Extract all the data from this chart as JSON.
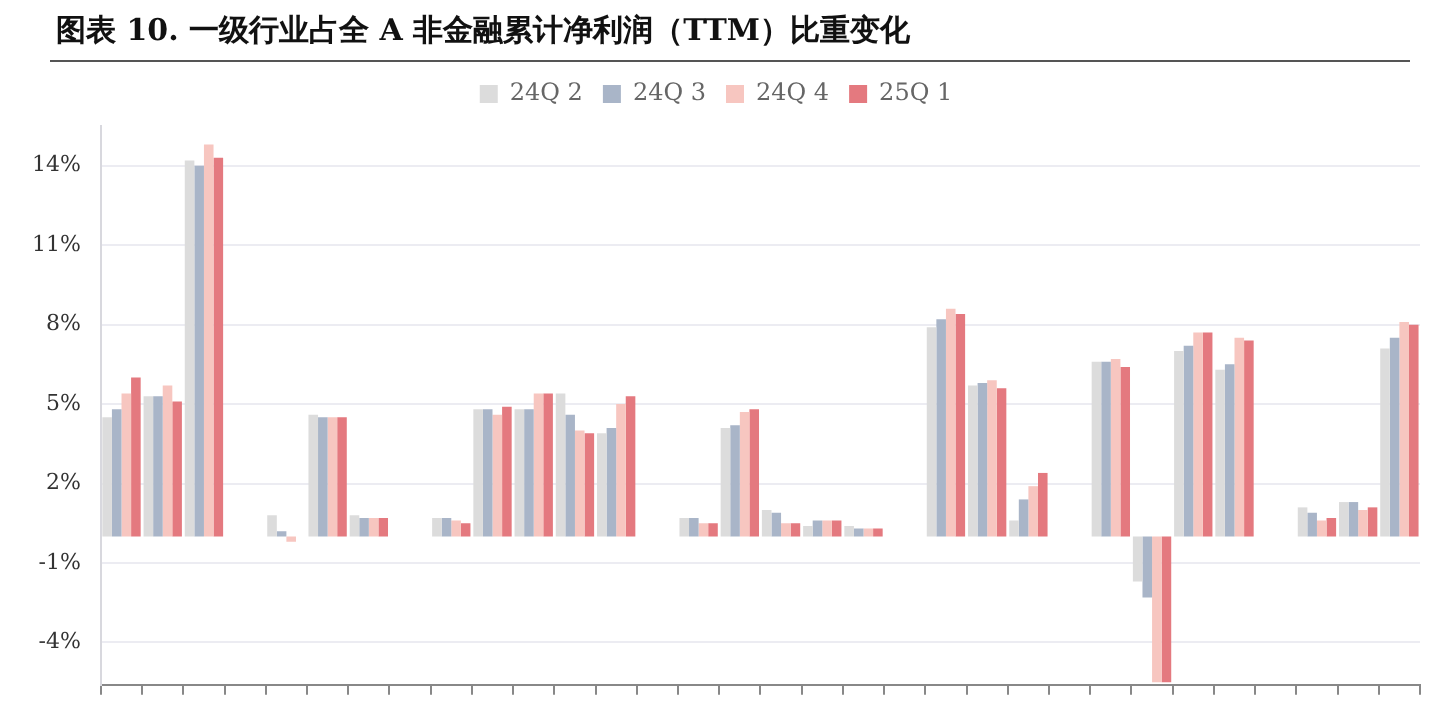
{
  "chart_data": {
    "type": "bar",
    "title": "图表 10. 一级行业占全 A 非金融累计净利润（TTM）比重变化",
    "categories": [
      null,
      null,
      null,
      null,
      null,
      null,
      null,
      null,
      null,
      null,
      null,
      null,
      null,
      null,
      null,
      null,
      null,
      null,
      null,
      null,
      null,
      null,
      null,
      null,
      null,
      null,
      null,
      null,
      null,
      null,
      null,
      null
    ],
    "series": [
      {
        "name": "24Q 2",
        "color": "#dcdcdc",
        "values": [
          4.5,
          5.3,
          14.2,
          null,
          0.8,
          4.6,
          0.8,
          null,
          0.7,
          4.8,
          4.8,
          5.4,
          3.9,
          null,
          0.7,
          4.1,
          1.0,
          0.4,
          0.4,
          null,
          7.9,
          5.7,
          0.6,
          null,
          6.6,
          -1.7,
          7.0,
          6.3,
          null,
          1.1,
          1.3,
          7.1
        ]
      },
      {
        "name": "24Q 3",
        "color": "#a9b5c8",
        "values": [
          4.8,
          5.3,
          14.0,
          null,
          0.2,
          4.5,
          0.7,
          null,
          0.7,
          4.8,
          4.8,
          4.6,
          4.1,
          null,
          0.7,
          4.2,
          0.9,
          0.6,
          0.3,
          null,
          8.2,
          5.8,
          1.4,
          null,
          6.6,
          -2.3,
          7.2,
          6.5,
          null,
          0.9,
          1.3,
          7.5
        ]
      },
      {
        "name": "24Q 4",
        "color": "#f7c6c0",
        "values": [
          5.4,
          5.7,
          14.8,
          null,
          -0.2,
          4.5,
          0.7,
          null,
          0.6,
          4.6,
          5.4,
          4.0,
          5.0,
          null,
          0.5,
          4.7,
          0.5,
          0.6,
          0.3,
          null,
          8.6,
          5.9,
          1.9,
          null,
          6.7,
          -5.5,
          7.7,
          7.5,
          null,
          0.6,
          1.0,
          8.1
        ]
      },
      {
        "name": "25Q 1",
        "color": "#e4797f",
        "values": [
          6.0,
          5.1,
          14.3,
          null,
          0.0,
          4.5,
          0.7,
          null,
          0.5,
          4.9,
          5.4,
          3.9,
          5.3,
          null,
          0.5,
          4.8,
          0.5,
          0.6,
          0.3,
          null,
          8.4,
          5.6,
          2.4,
          null,
          6.4,
          -5.5,
          7.7,
          7.4,
          null,
          0.7,
          1.1,
          8.0
        ]
      }
    ],
    "ylim": [
      -5.6,
      15.5
    ],
    "yticks": [
      {
        "value": -4,
        "label": "-4%"
      },
      {
        "value": -1,
        "label": "-1%"
      },
      {
        "value": 2,
        "label": "2%"
      },
      {
        "value": 5,
        "label": "5%"
      },
      {
        "value": 8,
        "label": "8%"
      },
      {
        "value": 11,
        "label": "11%"
      },
      {
        "value": 14,
        "label": "14%"
      }
    ],
    "grid": "y",
    "legend": "top",
    "tick_labels": "y"
  }
}
